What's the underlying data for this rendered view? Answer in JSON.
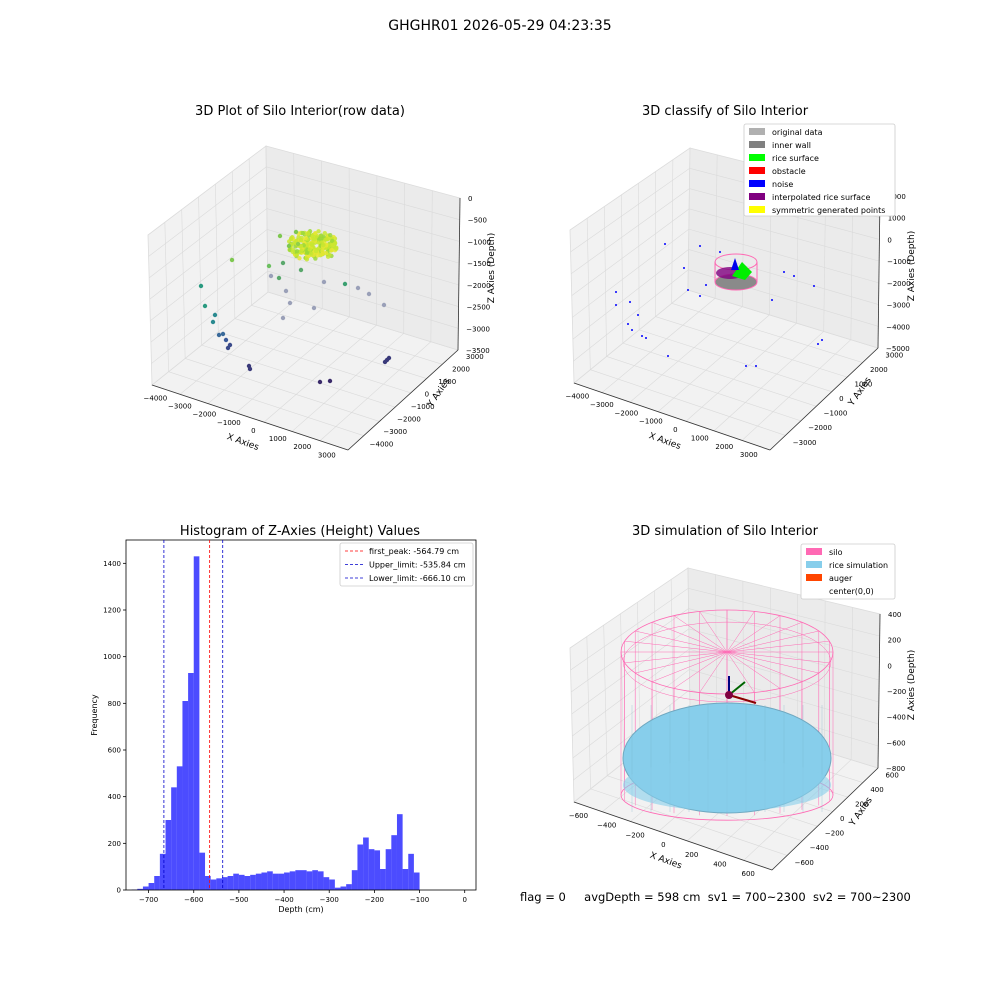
{
  "suptitle": "GHGHR01 2026-05-29 04:23:35",
  "footer": {
    "flag": "flag = 0",
    "avg": "avgDepth = 598 cm",
    "sv1": "sv1 = 700~2300",
    "sv2": "sv2 = 700~2300"
  },
  "chart_data": [
    {
      "type": "scatter3d",
      "title": "3D Plot of Silo Interior(row data)",
      "xlabel": "X Axies",
      "ylabel": "Y Axies",
      "zlabel": "Z Axies (Depth)",
      "x_ticks": [
        "−4000",
        "−3000",
        "−2000",
        "−1000",
        "0",
        "1000",
        "2000",
        "3000"
      ],
      "y_ticks": [
        "3000",
        "2000",
        "1000",
        "0",
        "−1000",
        "−2000",
        "−3000",
        "−4000"
      ],
      "z_ticks": [
        "0",
        "−500",
        "−1000",
        "−1500",
        "−2000",
        "−2500",
        "−3000",
        "−3500"
      ]
    },
    {
      "type": "scatter3d",
      "title": "3D classify of Silo Interior",
      "xlabel": "X Axies",
      "ylabel": "Y Axies",
      "zlabel": "Z Axies (Depth)",
      "x_ticks": [
        "−4000",
        "−3000",
        "−2000",
        "−1000",
        "0",
        "1000",
        "2000",
        "3000"
      ],
      "y_ticks": [
        "3000",
        "2000",
        "1000",
        "0",
        "−1000",
        "−2000",
        "−3000"
      ],
      "z_ticks": [
        "2000",
        "1000",
        "0",
        "−1000",
        "−2000",
        "−3000",
        "−4000",
        "−5000"
      ],
      "legend": [
        {
          "label": "original data",
          "color": "#b0b0b0"
        },
        {
          "label": "inner wall",
          "color": "#808080"
        },
        {
          "label": "rice surface",
          "color": "#00ff00"
        },
        {
          "label": "obstacle",
          "color": "#ff0000"
        },
        {
          "label": "noise",
          "color": "#0000ff"
        },
        {
          "label": "interpolated rice surface",
          "color": "#800080"
        },
        {
          "label": "symmetric generated points",
          "color": "#ffff00"
        }
      ]
    },
    {
      "type": "bar",
      "title": "Histogram of Z-Axies (Height) Values",
      "xlabel": "Depth (cm)",
      "ylabel": "Frequency",
      "xlim": [
        -750,
        25
      ],
      "ylim": [
        0,
        1500
      ],
      "x_ticks": [
        -700,
        -600,
        -500,
        -400,
        -300,
        -200,
        -100,
        0
      ],
      "y_ticks": [
        0,
        200,
        400,
        600,
        800,
        1000,
        1200,
        1400
      ],
      "bin_start": -737.5,
      "bin_width": 12.5,
      "color": "#0000ff",
      "values": [
        2,
        5,
        15,
        30,
        60,
        155,
        300,
        440,
        530,
        810,
        930,
        1430,
        160,
        60,
        45,
        50,
        55,
        60,
        70,
        65,
        60,
        65,
        70,
        75,
        80,
        70,
        70,
        75,
        80,
        85,
        85,
        80,
        85,
        80,
        55,
        45,
        10,
        15,
        25,
        85,
        195,
        225,
        175,
        170,
        90,
        175,
        235,
        325,
        90,
        155,
        75
      ],
      "lines": [
        {
          "label": "first_peak: -564.79 cm",
          "value": -564.79,
          "color": "#ff0000"
        },
        {
          "label": "Upper_limit: -535.84 cm",
          "value": -535.84,
          "color": "#0000cc"
        },
        {
          "label": "Lower_limit: -666.10 cm",
          "value": -666.1,
          "color": "#0000cc"
        }
      ]
    },
    {
      "type": "surface3d",
      "title": "3D simulation of Silo Interior",
      "xlabel": "X Axies",
      "ylabel": "Y Axies",
      "zlabel": "Z Axies (Depth)",
      "x_ticks": [
        "−600",
        "−400",
        "−200",
        "0",
        "200",
        "400",
        "600"
      ],
      "y_ticks": [
        "600",
        "400",
        "200",
        "0",
        "−200",
        "−400",
        "−600"
      ],
      "z_ticks": [
        "400",
        "200",
        "0",
        "−200",
        "−400",
        "−600",
        "−800"
      ],
      "legend": [
        {
          "label": "silo",
          "color": "#ff69b4"
        },
        {
          "label": "rice simulation",
          "color": "#87ceeb"
        },
        {
          "label": "auger",
          "color": "#ff4500"
        },
        {
          "label": "center(0,0)",
          "color": ""
        }
      ]
    }
  ]
}
